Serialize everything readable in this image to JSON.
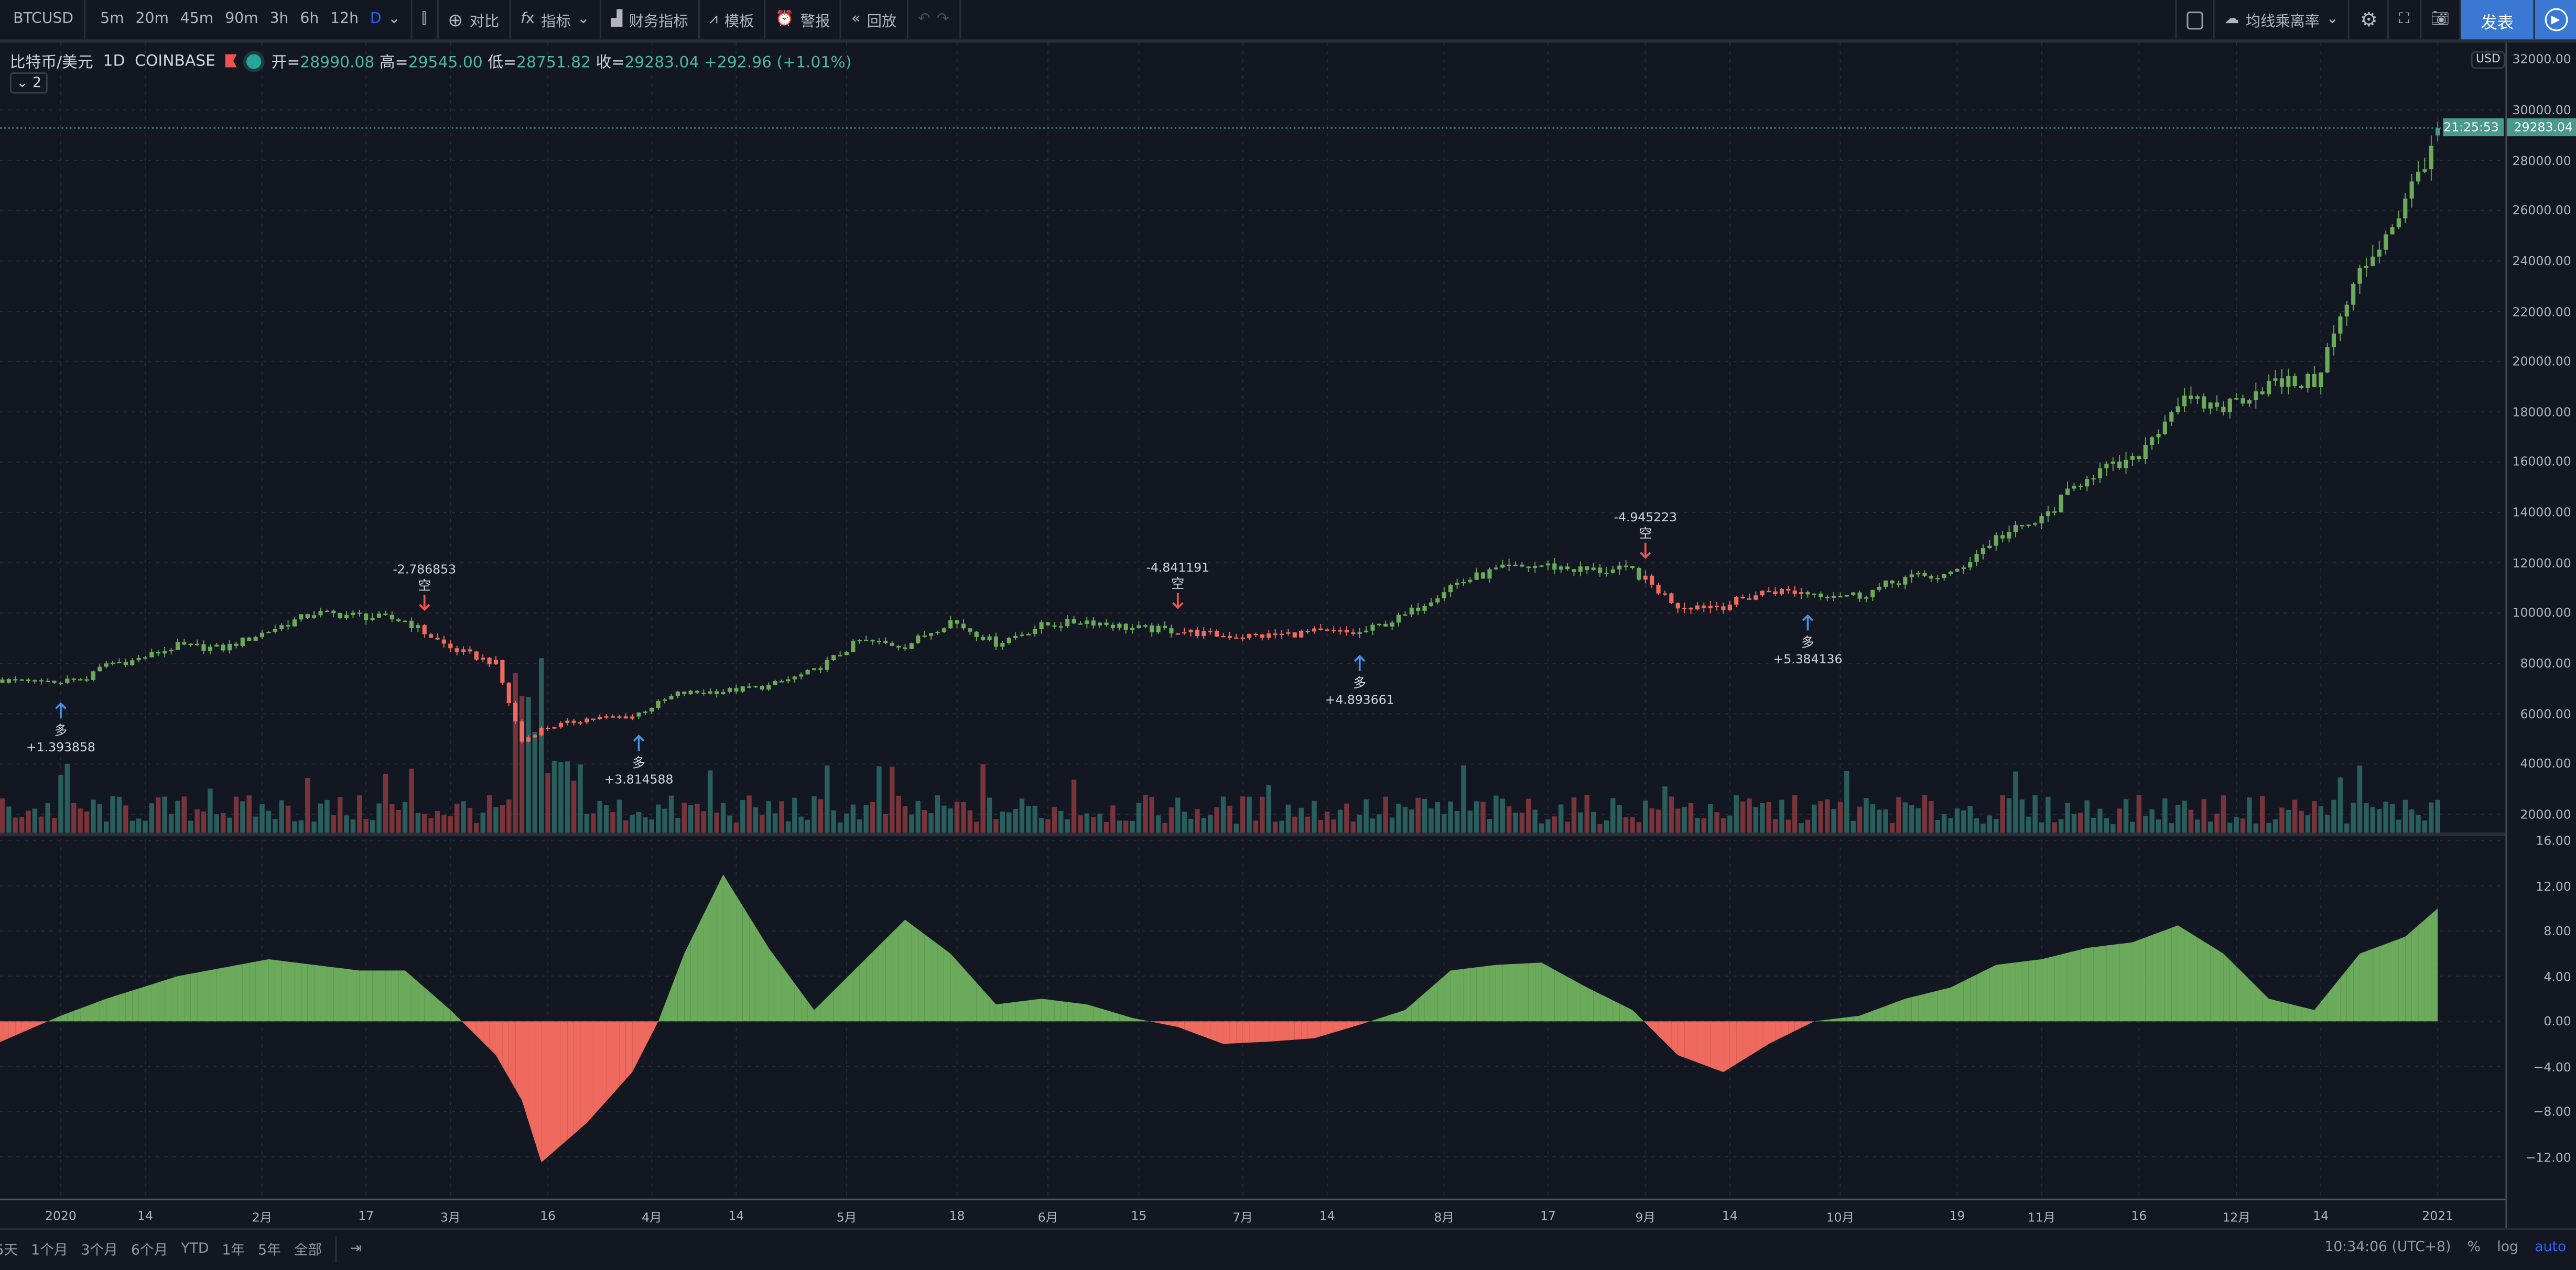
{
  "toolbar": {
    "symbol": "BTCUSD",
    "intervals": [
      "5m",
      "20m",
      "45m",
      "90m",
      "3h",
      "6h",
      "12h",
      "D"
    ],
    "active_interval": "D",
    "compare": "对比",
    "indicators": "指标",
    "financials": "财务指标",
    "templates": "模板",
    "alert": "警报",
    "replay": "回放",
    "layout_name": "均线乘离率",
    "publish": "发表",
    "accent": "#3a78d4"
  },
  "legend": {
    "name": "比特币/美元",
    "interval": "1D",
    "exchange": "COINBASE",
    "open_label": "开=",
    "open": "28990.08",
    "high_label": "高=",
    "high": "29545.00",
    "low_label": "低=",
    "low": "28751.82",
    "close_label": "收=",
    "close": "29283.04",
    "change": "+292.96 (+1.01%)",
    "collapse": "⌄ 2"
  },
  "price_axis": {
    "currency": "USD",
    "ticks": [
      "32000.00",
      "30000.00",
      "28000.00",
      "26000.00",
      "24000.00",
      "22000.00",
      "20000.00",
      "18000.00",
      "16000.00",
      "14000.00",
      "12000.00",
      "10000.00",
      "8000.00",
      "6000.00",
      "4000.00",
      "2000.00"
    ],
    "last_price": "29283.04",
    "countdown": "21:25:53",
    "last_color": "#4a9a8a"
  },
  "indicator_axis": {
    "ticks": [
      "16.00",
      "12.00",
      "8.00",
      "4.00",
      "0.00",
      "−4.00",
      "−8.00",
      "−12.00"
    ]
  },
  "time_axis": [
    {
      "label": "2020",
      "date": "2020-01-01"
    },
    {
      "label": "14",
      "date": "2020-01-14"
    },
    {
      "label": "2月",
      "date": "2020-02-01"
    },
    {
      "label": "17",
      "date": "2020-02-17"
    },
    {
      "label": "3月",
      "date": "2020-03-01"
    },
    {
      "label": "16",
      "date": "2020-03-16"
    },
    {
      "label": "4月",
      "date": "2020-04-01"
    },
    {
      "label": "14",
      "date": "2020-04-14"
    },
    {
      "label": "5月",
      "date": "2020-05-01"
    },
    {
      "label": "18",
      "date": "2020-05-18"
    },
    {
      "label": "6月",
      "date": "2020-06-01"
    },
    {
      "label": "15",
      "date": "2020-06-15"
    },
    {
      "label": "7月",
      "date": "2020-07-01"
    },
    {
      "label": "14",
      "date": "2020-07-14"
    },
    {
      "label": "8月",
      "date": "2020-08-01"
    },
    {
      "label": "17",
      "date": "2020-08-17"
    },
    {
      "label": "9月",
      "date": "2020-09-01"
    },
    {
      "label": "14",
      "date": "2020-09-14"
    },
    {
      "label": "10月",
      "date": "2020-10-01"
    },
    {
      "label": "19",
      "date": "2020-10-19"
    },
    {
      "label": "11月",
      "date": "2020-11-01"
    },
    {
      "label": "16",
      "date": "2020-11-16"
    },
    {
      "label": "12月",
      "date": "2020-12-01"
    },
    {
      "label": "14",
      "date": "2020-12-14"
    },
    {
      "label": "2021",
      "date": "2021-01-01"
    }
  ],
  "bottom_bar": {
    "ranges": [
      "5天",
      "1个月",
      "3个月",
      "6个月",
      "YTD",
      "1年",
      "5年",
      "全部"
    ],
    "clock": "10:34:06 (UTC+8)",
    "percent": "%",
    "log": "log",
    "auto": "auto"
  },
  "chart_data": [
    {
      "type": "candlestick",
      "ylim": [
        2000,
        32000
      ],
      "dates": [
        "2019-12-22",
        "2019-12-29",
        "2020-01-05",
        "2020-01-08",
        "2020-01-12",
        "2020-01-19",
        "2020-01-26",
        "2020-02-02",
        "2020-02-09",
        "2020-02-16",
        "2020-02-23",
        "2020-03-01",
        "2020-03-08",
        "2020-03-12",
        "2020-03-15",
        "2020-03-22",
        "2020-03-29",
        "2020-04-05",
        "2020-04-12",
        "2020-04-19",
        "2020-04-26",
        "2020-05-03",
        "2020-05-10",
        "2020-05-17",
        "2020-05-24",
        "2020-05-31",
        "2020-06-07",
        "2020-06-14",
        "2020-06-21",
        "2020-06-28",
        "2020-07-05",
        "2020-07-12",
        "2020-07-19",
        "2020-07-26",
        "2020-08-02",
        "2020-08-09",
        "2020-08-16",
        "2020-08-23",
        "2020-08-30",
        "2020-09-06",
        "2020-09-13",
        "2020-09-20",
        "2020-09-27",
        "2020-10-04",
        "2020-10-11",
        "2020-10-18",
        "2020-10-25",
        "2020-11-01",
        "2020-11-08",
        "2020-11-15",
        "2020-11-22",
        "2020-11-29",
        "2020-12-06",
        "2020-12-13",
        "2020-12-20",
        "2020-12-27",
        "2021-01-01"
      ],
      "close": [
        7300,
        7250,
        7400,
        8000,
        8100,
        8700,
        8600,
        9300,
        10000,
        9900,
        9700,
        8600,
        8000,
        4900,
        5400,
        5800,
        5900,
        6800,
        6900,
        7100,
        7700,
        8900,
        8700,
        9700,
        8800,
        9500,
        9700,
        9400,
        9300,
        9100,
        9100,
        9250,
        9200,
        9900,
        11100,
        11700,
        11900,
        11700,
        11700,
        10300,
        10300,
        10900,
        10800,
        10700,
        11400,
        11500,
        13000,
        13700,
        15500,
        16000,
        18400,
        18200,
        19100,
        19200,
        23500,
        26300,
        29283.04
      ],
      "last_candle": {
        "open": 28990.08,
        "high": 29545.0,
        "low": 28751.82,
        "close": 29283.04
      },
      "colors": {
        "long": "#6aaa5a",
        "short": "#ef6a5e",
        "last": "#4a9a8a",
        "vol_up": "#2e6b66",
        "vol_down": "#8a3a3e"
      }
    },
    {
      "type": "signals",
      "items": [
        {
          "date": "2020-01-01",
          "side": "多",
          "value": "+1.393858",
          "dir": "long"
        },
        {
          "date": "2020-02-26",
          "side": "空",
          "value": "-2.786853",
          "dir": "short"
        },
        {
          "date": "2020-03-30",
          "side": "多",
          "value": "+3.814588",
          "dir": "long"
        },
        {
          "date": "2020-06-21",
          "side": "空",
          "value": "-4.841191",
          "dir": "short"
        },
        {
          "date": "2020-07-19",
          "side": "多",
          "value": "+4.893661",
          "dir": "long"
        },
        {
          "date": "2020-09-01",
          "side": "空",
          "value": "-4.945223",
          "dir": "short"
        },
        {
          "date": "2020-09-26",
          "side": "多",
          "value": "+5.384136",
          "dir": "long"
        }
      ],
      "colors": {
        "long": "#4a90e2",
        "short": "#ef5350"
      }
    },
    {
      "type": "area",
      "name": "均线乘离率",
      "ylim": [
        -14,
        16
      ],
      "dates": [
        "2019-12-22",
        "2020-01-01",
        "2020-01-08",
        "2020-01-19",
        "2020-02-02",
        "2020-02-09",
        "2020-02-16",
        "2020-02-23",
        "2020-03-01",
        "2020-03-08",
        "2020-03-12",
        "2020-03-15",
        "2020-03-22",
        "2020-03-29",
        "2020-04-02",
        "2020-04-06",
        "2020-04-12",
        "2020-04-19",
        "2020-04-26",
        "2020-05-03",
        "2020-05-10",
        "2020-05-17",
        "2020-05-24",
        "2020-05-31",
        "2020-06-07",
        "2020-06-14",
        "2020-06-21",
        "2020-06-28",
        "2020-07-05",
        "2020-07-12",
        "2020-07-19",
        "2020-07-26",
        "2020-08-02",
        "2020-08-09",
        "2020-08-16",
        "2020-08-23",
        "2020-08-30",
        "2020-09-06",
        "2020-09-13",
        "2020-09-20",
        "2020-09-27",
        "2020-10-04",
        "2020-10-11",
        "2020-10-18",
        "2020-10-25",
        "2020-11-01",
        "2020-11-08",
        "2020-11-15",
        "2020-11-22",
        "2020-11-29",
        "2020-12-06",
        "2020-12-13",
        "2020-12-20",
        "2020-12-27",
        "2021-01-01"
      ],
      "values": [
        -2,
        0.5,
        2,
        4,
        5.5,
        5,
        4.5,
        4.5,
        1,
        -3,
        -7,
        -12.5,
        -9,
        -4.5,
        0,
        6,
        13,
        6.5,
        1,
        5,
        9,
        6,
        1.5,
        2,
        1.5,
        0.3,
        -0.5,
        -2,
        -1.8,
        -1.5,
        -0.3,
        1,
        4.5,
        5,
        5.2,
        3,
        1,
        -3,
        -4.5,
        -2,
        0,
        0.5,
        2,
        3,
        5,
        5.5,
        6.5,
        7,
        8.5,
        6,
        2,
        1,
        6,
        7.5,
        10
      ],
      "colors": {
        "positive": "#6aaa5a",
        "negative": "#ef6a5e"
      }
    }
  ]
}
